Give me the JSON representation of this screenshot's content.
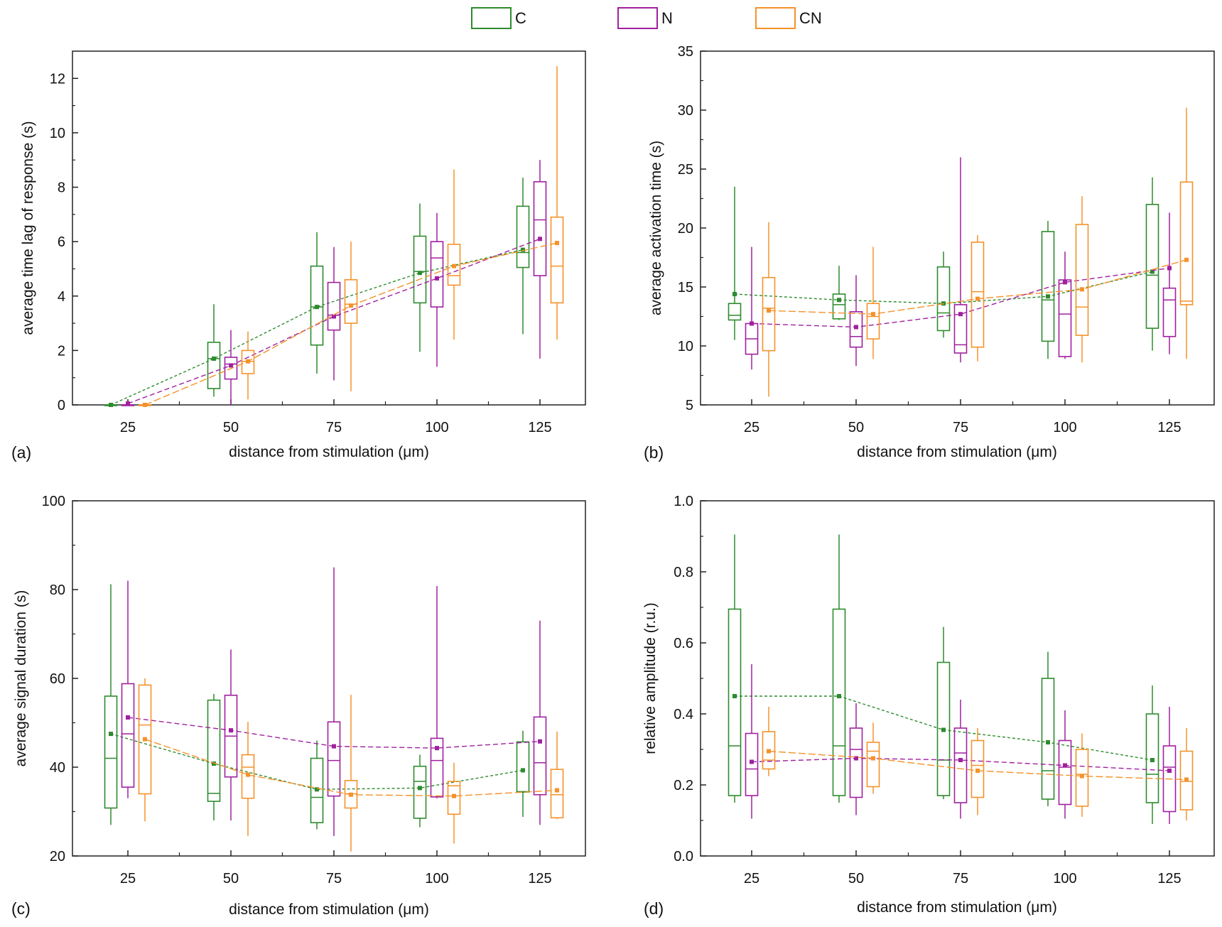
{
  "legend": {
    "items": [
      {
        "key": "C",
        "label": "C",
        "color": "#2e8b2e"
      },
      {
        "key": "N",
        "label": "N",
        "color": "#a020a0"
      },
      {
        "key": "CN",
        "label": "CN",
        "color": "#f5922a"
      }
    ]
  },
  "chart_data": [
    {
      "id": "a",
      "type": "box",
      "panel_label": "(a)",
      "xlabel": "distance from stimulation (μm)",
      "ylabel": "average time lag of response (s)",
      "categories": [
        "25",
        "50",
        "75",
        "100",
        "125"
      ],
      "ylim": [
        0,
        13
      ],
      "yticks": [
        0,
        2,
        4,
        6,
        8,
        10,
        12
      ],
      "series": [
        {
          "name": "C",
          "q1": [
            0,
            0.6,
            2.2,
            3.75,
            5.05
          ],
          "median": [
            0,
            1.7,
            3.6,
            4.9,
            5.6
          ],
          "q3": [
            0,
            2.3,
            5.1,
            6.2,
            7.3
          ],
          "whisker_low": [
            0,
            0.3,
            1.15,
            1.95,
            2.6
          ],
          "whisker_high": [
            0,
            3.7,
            6.35,
            7.4,
            8.35
          ],
          "mean": [
            0,
            1.7,
            3.6,
            4.85,
            5.7
          ]
        },
        {
          "name": "N",
          "q1": [
            0,
            0.95,
            2.75,
            3.6,
            4.75
          ],
          "median": [
            0,
            1.5,
            3.3,
            5.4,
            6.8
          ],
          "q3": [
            0,
            1.75,
            4.5,
            6.0,
            8.2
          ],
          "whisker_low": [
            0,
            0,
            0.9,
            1.4,
            1.7
          ],
          "whisker_high": [
            0,
            2.75,
            5.8,
            7.05,
            9.0
          ],
          "mean": [
            0.05,
            1.45,
            3.25,
            4.65,
            6.1
          ]
        },
        {
          "name": "CN",
          "q1": [
            0,
            1.15,
            3.0,
            4.4,
            3.75
          ],
          "median": [
            0,
            1.6,
            3.7,
            4.75,
            5.1
          ],
          "q3": [
            0,
            2.0,
            4.6,
            5.9,
            6.9
          ],
          "whisker_low": [
            0,
            0.2,
            0.5,
            2.4,
            2.4
          ],
          "whisker_high": [
            0,
            2.7,
            6.0,
            8.65,
            12.45
          ],
          "mean": [
            0,
            1.6,
            3.65,
            5.1,
            5.95
          ]
        }
      ]
    },
    {
      "id": "b",
      "type": "box",
      "panel_label": "(b)",
      "xlabel": "distance from stimulation (μm)",
      "ylabel": "average activation time (s)",
      "categories": [
        "25",
        "50",
        "75",
        "100",
        "125"
      ],
      "ylim": [
        5,
        35
      ],
      "yticks": [
        5,
        10,
        15,
        20,
        25,
        30,
        35
      ],
      "series": [
        {
          "name": "C",
          "q1": [
            12.2,
            12.3,
            11.3,
            10.4,
            11.5
          ],
          "median": [
            12.6,
            13.5,
            12.8,
            13.9,
            16.0
          ],
          "q3": [
            13.6,
            14.4,
            16.7,
            19.7,
            22.0
          ],
          "whisker_low": [
            10.5,
            12.2,
            10.7,
            8.9,
            9.6
          ],
          "whisker_high": [
            23.5,
            16.8,
            18.0,
            20.6,
            24.3
          ],
          "mean": [
            14.4,
            13.9,
            13.6,
            14.2,
            16.3
          ]
        },
        {
          "name": "N",
          "q1": [
            9.3,
            9.9,
            9.4,
            9.1,
            10.8
          ],
          "median": [
            10.6,
            10.8,
            10.1,
            12.7,
            13.9
          ],
          "q3": [
            11.9,
            12.9,
            13.5,
            15.6,
            14.9
          ],
          "whisker_low": [
            8.0,
            8.3,
            8.6,
            8.9,
            9.3
          ],
          "whisker_high": [
            18.4,
            16.0,
            26.0,
            18.0,
            21.3
          ],
          "mean": [
            11.9,
            11.6,
            12.7,
            15.4,
            16.6
          ]
        },
        {
          "name": "CN",
          "q1": [
            9.6,
            10.6,
            9.9,
            10.9,
            13.5
          ],
          "median": [
            13.2,
            12.5,
            14.6,
            13.3,
            13.8
          ],
          "q3": [
            15.8,
            13.6,
            18.8,
            20.3,
            23.9
          ],
          "whisker_low": [
            5.7,
            8.9,
            8.7,
            8.6,
            8.9
          ],
          "whisker_high": [
            20.5,
            18.4,
            19.4,
            22.7,
            30.2
          ],
          "mean": [
            13.0,
            12.7,
            14.0,
            14.8,
            17.3
          ]
        }
      ]
    },
    {
      "id": "c",
      "type": "box",
      "panel_label": "(c)",
      "xlabel": "distance from stimulation (μm)",
      "ylabel": "average signal duration (s)",
      "categories": [
        "25",
        "50",
        "75",
        "100",
        "125"
      ],
      "ylim": [
        20,
        100
      ],
      "yticks": [
        20,
        40,
        60,
        80,
        100
      ],
      "series": [
        {
          "name": "C",
          "q1": [
            30.8,
            32.3,
            27.5,
            28.5,
            34.4
          ],
          "median": [
            42.0,
            34.1,
            33.2,
            36.8,
            34.5
          ],
          "q3": [
            56.0,
            55.1,
            42.0,
            40.2,
            45.7
          ],
          "whisker_low": [
            27.0,
            28.0,
            26.0,
            26.5,
            28.8
          ],
          "whisker_high": [
            81.2,
            56.5,
            46.0,
            42.8,
            48.2
          ],
          "mean": [
            47.5,
            40.8,
            35.0,
            35.3,
            39.3
          ]
        },
        {
          "name": "N",
          "q1": [
            35.5,
            37.8,
            33.5,
            33.3,
            33.8
          ],
          "median": [
            47.5,
            47.0,
            41.5,
            41.5,
            41.0
          ],
          "q3": [
            58.8,
            56.2,
            50.2,
            46.5,
            51.3
          ],
          "whisker_low": [
            33.0,
            28.0,
            24.5,
            33.0,
            27.0
          ],
          "whisker_high": [
            82.0,
            66.5,
            85.0,
            80.8,
            73.0
          ],
          "mean": [
            51.2,
            48.3,
            44.7,
            44.3,
            45.8
          ]
        },
        {
          "name": "CN",
          "q1": [
            34.0,
            33.0,
            30.8,
            29.4,
            28.6
          ],
          "median": [
            49.5,
            40.0,
            34.0,
            35.8,
            33.8
          ],
          "q3": [
            58.5,
            42.8,
            37.0,
            36.8,
            39.5
          ],
          "whisker_low": [
            27.8,
            24.5,
            21.0,
            22.8,
            28.3
          ],
          "whisker_high": [
            60.0,
            50.2,
            56.3,
            41.0,
            48.0
          ],
          "mean": [
            46.3,
            38.3,
            33.8,
            33.5,
            34.8
          ]
        }
      ]
    },
    {
      "id": "d",
      "type": "box",
      "panel_label": "(d)",
      "xlabel": "distance from stimulation (μm)",
      "ylabel": "relative amplitude (r.u.)",
      "categories": [
        "25",
        "50",
        "75",
        "100",
        "125"
      ],
      "ylim": [
        0,
        1
      ],
      "yticks": [
        "0.0",
        "0.2",
        "0.4",
        "0.6",
        "0.8",
        "1.0"
      ],
      "series": [
        {
          "name": "C",
          "q1": [
            0.17,
            0.17,
            0.17,
            0.16,
            0.15
          ],
          "median": [
            0.31,
            0.31,
            0.27,
            0.24,
            0.23
          ],
          "q3": [
            0.695,
            0.695,
            0.545,
            0.5,
            0.4
          ],
          "whisker_low": [
            0.15,
            0.15,
            0.16,
            0.14,
            0.09
          ],
          "whisker_high": [
            0.905,
            0.905,
            0.645,
            0.575,
            0.48
          ],
          "mean": [
            0.45,
            0.45,
            0.355,
            0.32,
            0.27
          ]
        },
        {
          "name": "N",
          "q1": [
            0.17,
            0.165,
            0.15,
            0.145,
            0.125
          ],
          "median": [
            0.245,
            0.3,
            0.29,
            0.25,
            0.25
          ],
          "q3": [
            0.345,
            0.36,
            0.36,
            0.325,
            0.31
          ],
          "whisker_low": [
            0.105,
            0.115,
            0.105,
            0.105,
            0.09
          ],
          "whisker_high": [
            0.54,
            0.43,
            0.44,
            0.41,
            0.42
          ],
          "mean": [
            0.265,
            0.275,
            0.27,
            0.255,
            0.24
          ]
        },
        {
          "name": "CN",
          "q1": [
            0.245,
            0.195,
            0.165,
            0.14,
            0.13
          ],
          "median": [
            0.27,
            0.295,
            0.255,
            0.23,
            0.21
          ],
          "q3": [
            0.35,
            0.32,
            0.325,
            0.3,
            0.295
          ],
          "whisker_low": [
            0.225,
            0.175,
            0.115,
            0.11,
            0.1
          ],
          "whisker_high": [
            0.42,
            0.375,
            0.36,
            0.345,
            0.36
          ],
          "mean": [
            0.295,
            0.275,
            0.24,
            0.225,
            0.215
          ]
        }
      ]
    }
  ]
}
